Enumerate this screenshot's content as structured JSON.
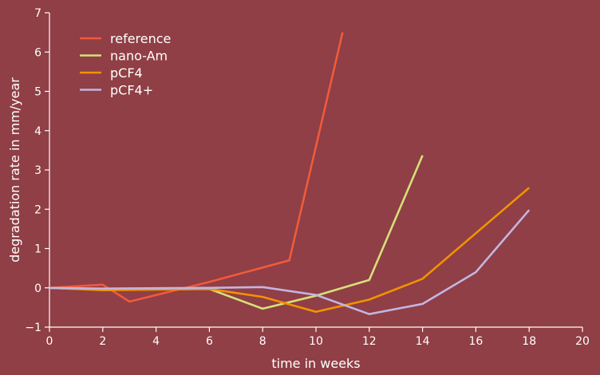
{
  "chart_data": {
    "type": "line",
    "xlabel": "time in weeks",
    "ylabel": "degradation rate in mm/year",
    "xlim": [
      0,
      20
    ],
    "ylim": [
      -1,
      7
    ],
    "xticks": [
      0,
      2,
      4,
      6,
      8,
      10,
      12,
      14,
      16,
      18,
      20
    ],
    "yticks": [
      -1,
      0,
      1,
      2,
      3,
      4,
      5,
      6,
      7
    ],
    "grid": false,
    "legend": "top-left",
    "series": [
      {
        "name": "reference",
        "color": "#f05a3c",
        "x": [
          0,
          2,
          3,
          6,
          9,
          11
        ],
        "y": [
          0.0,
          0.08,
          -0.35,
          0.15,
          0.7,
          6.5
        ]
      },
      {
        "name": "nano-Am",
        "color": "#d7df7a",
        "x": [
          0,
          2,
          6,
          8,
          10,
          12,
          14
        ],
        "y": [
          0.0,
          -0.05,
          -0.03,
          -0.53,
          -0.2,
          0.2,
          3.37
        ]
      },
      {
        "name": "pCF4",
        "color": "#f39200",
        "x": [
          0,
          2,
          6,
          8,
          10,
          12,
          14,
          18
        ],
        "y": [
          0.0,
          -0.06,
          -0.03,
          -0.23,
          -0.61,
          -0.3,
          0.23,
          2.55
        ]
      },
      {
        "name": "pCF4+",
        "color": "#c3b5e0",
        "x": [
          0,
          2,
          6,
          8,
          10,
          12,
          14,
          16,
          18
        ],
        "y": [
          0.0,
          -0.02,
          0.0,
          0.02,
          -0.18,
          -0.67,
          -0.41,
          0.4,
          1.98
        ]
      }
    ]
  }
}
